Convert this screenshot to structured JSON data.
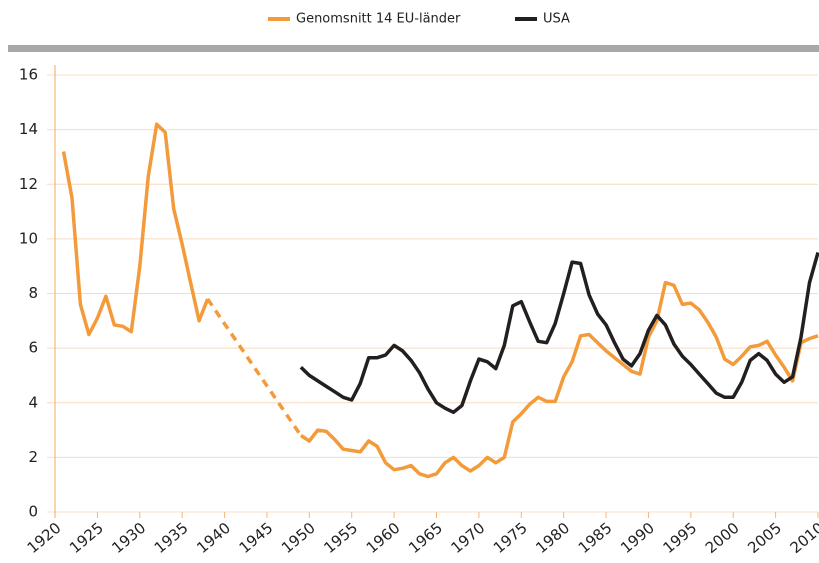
{
  "chart_data": {
    "type": "line",
    "x": [
      1921,
      1922,
      1923,
      1924,
      1925,
      1926,
      1927,
      1928,
      1929,
      1930,
      1931,
      1932,
      1933,
      1934,
      1935,
      1936,
      1937,
      1938,
      1939,
      1940,
      1941,
      1942,
      1943,
      1944,
      1945,
      1946,
      1947,
      1948,
      1949,
      1950,
      1951,
      1952,
      1953,
      1954,
      1955,
      1956,
      1957,
      1958,
      1959,
      1960,
      1961,
      1962,
      1963,
      1964,
      1965,
      1966,
      1967,
      1968,
      1969,
      1970,
      1971,
      1972,
      1973,
      1974,
      1975,
      1976,
      1977,
      1978,
      1979,
      1980,
      1981,
      1982,
      1983,
      1984,
      1985,
      1986,
      1987,
      1988,
      1989,
      1990,
      1991,
      1992,
      1993,
      1994,
      1995,
      1996,
      1997,
      1998,
      1999,
      2000,
      2001,
      2002,
      2003,
      2004,
      2005,
      2006,
      2007,
      2008,
      2009,
      2010
    ],
    "series": [
      {
        "name": "Genomsnitt 14 EU-länder",
        "color": "#f39a3a",
        "dashed_gaps": true,
        "values": [
          13.2,
          11.5,
          7.6,
          6.5,
          7.1,
          7.9,
          6.85,
          6.8,
          6.6,
          9.0,
          12.3,
          14.2,
          13.9,
          11.1,
          9.8,
          8.4,
          7.0,
          7.8,
          null,
          null,
          null,
          null,
          null,
          null,
          null,
          null,
          null,
          null,
          2.8,
          2.6,
          3.0,
          2.95,
          2.65,
          2.3,
          2.25,
          2.2,
          2.6,
          2.4,
          1.8,
          1.55,
          1.6,
          1.7,
          1.4,
          1.3,
          1.4,
          1.8,
          2.0,
          1.7,
          1.5,
          1.7,
          2.0,
          1.8,
          2.0,
          3.3,
          3.6,
          3.95,
          4.2,
          4.05,
          4.05,
          4.95,
          5.5,
          6.45,
          6.5,
          6.2,
          5.9,
          5.65,
          5.4,
          5.15,
          5.05,
          6.4,
          7.0,
          8.4,
          8.3,
          7.6,
          7.65,
          7.4,
          6.95,
          6.4,
          5.6,
          5.4,
          5.7,
          6.05,
          6.1,
          6.25,
          5.75,
          5.3,
          4.8,
          6.2,
          6.35,
          6.45
        ]
      },
      {
        "name": "USA",
        "color": "#231f20",
        "values": [
          null,
          null,
          null,
          null,
          null,
          null,
          null,
          null,
          null,
          null,
          null,
          null,
          null,
          null,
          null,
          null,
          null,
          null,
          null,
          null,
          null,
          null,
          null,
          null,
          null,
          null,
          null,
          null,
          5.3,
          5.0,
          4.8,
          4.6,
          4.4,
          4.2,
          4.1,
          4.7,
          5.65,
          5.65,
          5.75,
          6.1,
          5.9,
          5.55,
          5.1,
          4.5,
          4.0,
          3.8,
          3.65,
          3.9,
          4.8,
          5.6,
          5.5,
          5.25,
          6.1,
          7.55,
          7.7,
          6.95,
          6.25,
          6.2,
          6.9,
          8.0,
          9.15,
          9.1,
          7.95,
          7.25,
          6.85,
          6.2,
          5.6,
          5.35,
          5.8,
          6.65,
          7.2,
          6.85,
          6.15,
          5.7,
          5.4,
          5.05,
          4.7,
          4.35,
          4.2,
          4.2,
          4.75,
          5.55,
          5.8,
          5.55,
          5.05,
          4.75,
          4.95,
          6.4,
          8.4,
          9.5
        ]
      }
    ],
    "xlim": [
      1920,
      2010
    ],
    "xticks": [
      1920,
      1925,
      1930,
      1935,
      1940,
      1945,
      1950,
      1955,
      1960,
      1965,
      1970,
      1975,
      1980,
      1985,
      1990,
      1995,
      2000,
      2005,
      2010
    ],
    "ylim": [
      0,
      16
    ],
    "yticks": [
      0,
      2,
      4,
      6,
      8,
      10,
      12,
      14,
      16
    ],
    "grid": true,
    "legend": "top"
  }
}
